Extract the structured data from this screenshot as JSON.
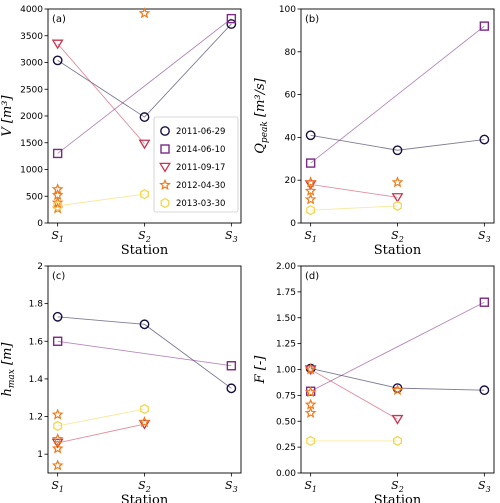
{
  "legend": [
    {
      "name": "2011-06-29",
      "color": "#1a1040",
      "marker": "circle"
    },
    {
      "name": "2014-06-10",
      "color": "#7a2a84",
      "marker": "square"
    },
    {
      "name": "2011-09-17",
      "color": "#c8354f",
      "marker": "triangle-down"
    },
    {
      "name": "2012-04-30",
      "color": "#f07a1a",
      "marker": "star"
    },
    {
      "name": "2013-03-30",
      "color": "#f3d64b",
      "marker": "hexagon"
    }
  ],
  "chart_data": [
    {
      "panel": "(a)",
      "type": "scatter",
      "xlabel": "Station",
      "ylabel": "V [m³]",
      "categories": [
        "S1",
        "S2",
        "S3"
      ],
      "ylim": [
        0,
        4000
      ],
      "yticks": [
        0,
        500,
        1000,
        1500,
        2000,
        2500,
        3000,
        3500,
        4000
      ],
      "series": [
        {
          "name": "2011-06-29",
          "points": [
            {
              "x": "S1",
              "y": 3040
            },
            {
              "x": "S2",
              "y": 1980
            },
            {
              "x": "S3",
              "y": 3720
            }
          ]
        },
        {
          "name": "2014-06-10",
          "points": [
            {
              "x": "S1",
              "y": 1300
            },
            {
              "x": "S3",
              "y": 3820
            }
          ]
        },
        {
          "name": "2011-09-17",
          "points": [
            {
              "x": "S1",
              "y": 3350
            },
            {
              "x": "S2",
              "y": 1480
            }
          ]
        },
        {
          "name": "2012-04-30",
          "points": [
            {
              "x": "S1",
              "y": 630
            },
            {
              "x": "S1",
              "y": 520
            },
            {
              "x": "S1",
              "y": 380
            },
            {
              "x": "S1",
              "y": 270
            },
            {
              "x": "S2",
              "y": 3920
            }
          ]
        },
        {
          "name": "2013-03-30",
          "points": [
            {
              "x": "S1",
              "y": 320
            },
            {
              "x": "S2",
              "y": 540
            }
          ]
        }
      ]
    },
    {
      "panel": "(b)",
      "type": "scatter",
      "xlabel": "Station",
      "ylabel": "Q_peak [m³/s]",
      "categories": [
        "S1",
        "S2",
        "S3"
      ],
      "ylim": [
        0,
        100
      ],
      "yticks": [
        0,
        20,
        40,
        60,
        80,
        100
      ],
      "series": [
        {
          "name": "2011-06-29",
          "points": [
            {
              "x": "S1",
              "y": 41
            },
            {
              "x": "S2",
              "y": 34
            },
            {
              "x": "S3",
              "y": 39
            }
          ]
        },
        {
          "name": "2014-06-10",
          "points": [
            {
              "x": "S1",
              "y": 28
            },
            {
              "x": "S3",
              "y": 92
            }
          ]
        },
        {
          "name": "2011-09-17",
          "points": [
            {
              "x": "S1",
              "y": 18
            },
            {
              "x": "S2",
              "y": 12
            }
          ]
        },
        {
          "name": "2012-04-30",
          "points": [
            {
              "x": "S1",
              "y": 19
            },
            {
              "x": "S1",
              "y": 15
            },
            {
              "x": "S1",
              "y": 11
            },
            {
              "x": "S2",
              "y": 19
            }
          ]
        },
        {
          "name": "2013-03-30",
          "points": [
            {
              "x": "S1",
              "y": 6
            },
            {
              "x": "S2",
              "y": 8
            }
          ]
        }
      ]
    },
    {
      "panel": "(c)",
      "type": "scatter",
      "xlabel": "Station",
      "ylabel": "h_max [m]",
      "categories": [
        "S1",
        "S2",
        "S3"
      ],
      "ylim": [
        0.9,
        2.0
      ],
      "yticks": [
        1.0,
        1.2,
        1.4,
        1.6,
        1.8,
        2.0
      ],
      "series": [
        {
          "name": "2011-06-29",
          "points": [
            {
              "x": "S1",
              "y": 1.73
            },
            {
              "x": "S2",
              "y": 1.69
            },
            {
              "x": "S3",
              "y": 1.35
            }
          ]
        },
        {
          "name": "2014-06-10",
          "points": [
            {
              "x": "S1",
              "y": 1.6
            },
            {
              "x": "S3",
              "y": 1.47
            }
          ]
        },
        {
          "name": "2011-09-17",
          "points": [
            {
              "x": "S1",
              "y": 1.06
            },
            {
              "x": "S2",
              "y": 1.16
            }
          ]
        },
        {
          "name": "2012-04-30",
          "points": [
            {
              "x": "S1",
              "y": 1.21
            },
            {
              "x": "S1",
              "y": 1.08
            },
            {
              "x": "S1",
              "y": 1.03
            },
            {
              "x": "S1",
              "y": 0.94
            },
            {
              "x": "S2",
              "y": 1.17
            }
          ]
        },
        {
          "name": "2013-03-30",
          "points": [
            {
              "x": "S1",
              "y": 1.15
            },
            {
              "x": "S2",
              "y": 1.24
            }
          ]
        }
      ]
    },
    {
      "panel": "(d)",
      "type": "scatter",
      "xlabel": "Station",
      "ylabel": "F [-]",
      "categories": [
        "S1",
        "S2",
        "S3"
      ],
      "ylim": [
        0,
        2.0
      ],
      "yticks": [
        0,
        0.25,
        0.5,
        0.75,
        1.0,
        1.25,
        1.5,
        1.75,
        2.0
      ],
      "ytick_labels": [
        "0.00",
        "0.25",
        "0.50",
        "0.75",
        "1.00",
        "1.25",
        "1.50",
        "1.75",
        "2.00"
      ],
      "series": [
        {
          "name": "2011-06-29",
          "points": [
            {
              "x": "S1",
              "y": 1.01
            },
            {
              "x": "S2",
              "y": 0.82
            },
            {
              "x": "S3",
              "y": 0.8
            }
          ]
        },
        {
          "name": "2014-06-10",
          "points": [
            {
              "x": "S1",
              "y": 0.79
            },
            {
              "x": "S3",
              "y": 1.65
            }
          ]
        },
        {
          "name": "2011-09-17",
          "points": [
            {
              "x": "S1",
              "y": 1.0
            },
            {
              "x": "S2",
              "y": 0.52
            }
          ]
        },
        {
          "name": "2012-04-30",
          "points": [
            {
              "x": "S1",
              "y": 1.0
            },
            {
              "x": "S1",
              "y": 0.78
            },
            {
              "x": "S1",
              "y": 0.66
            },
            {
              "x": "S1",
              "y": 0.58
            },
            {
              "x": "S2",
              "y": 0.8
            }
          ]
        },
        {
          "name": "2013-03-30",
          "points": [
            {
              "x": "S1",
              "y": 0.31
            },
            {
              "x": "S2",
              "y": 0.31
            }
          ]
        }
      ]
    }
  ]
}
